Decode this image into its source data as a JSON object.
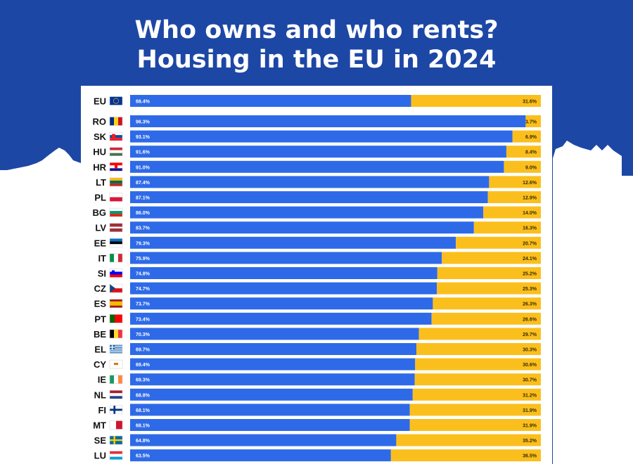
{
  "title_line1": "Who owns and who rents?",
  "title_line2": "Housing in the EU in 2024",
  "colors": {
    "background": "#1d47a5",
    "owner_bar": "#2e6ae8",
    "tenant_bar": "#fbbf1d"
  },
  "chart_data": {
    "type": "bar",
    "orientation": "horizontal",
    "stacked": true,
    "xlim": [
      0,
      100
    ],
    "categories": [
      "EU",
      "RO",
      "SK",
      "HU",
      "HR",
      "LT",
      "PL",
      "BG",
      "LV",
      "EE",
      "IT",
      "SI",
      "CZ",
      "ES",
      "PT",
      "BE",
      "EL",
      "CY",
      "IE",
      "NL",
      "FI",
      "MT",
      "SE",
      "LU"
    ],
    "series": [
      {
        "values": [
          68.4,
          96.3,
          93.1,
          91.6,
          91.0,
          87.4,
          87.1,
          86.0,
          83.7,
          79.3,
          75.9,
          74.8,
          74.7,
          73.7,
          73.4,
          70.3,
          69.7,
          69.4,
          69.3,
          68.8,
          68.1,
          68.1,
          64.8,
          63.5
        ],
        "labels": [
          "68.4%",
          "96.3%",
          "93.1%",
          "91.6%",
          "91.0%",
          "87.4%",
          "87.1%",
          "86.0%",
          "83.7%",
          "79.3%",
          "75.9%",
          "74.8%",
          "74.7%",
          "73.7%",
          "73.4%",
          "70.3%",
          "69.7%",
          "69.4%",
          "69.3%",
          "68.8%",
          "68.1%",
          "68.1%",
          "64.8%",
          "63.5%"
        ]
      },
      {
        "values": [
          31.6,
          3.7,
          6.9,
          8.4,
          9.0,
          12.6,
          12.9,
          14.0,
          16.3,
          20.7,
          24.1,
          25.2,
          25.3,
          26.3,
          26.6,
          29.7,
          30.3,
          30.6,
          30.7,
          31.2,
          31.9,
          31.9,
          35.2,
          36.5
        ],
        "labels": [
          "31.6%",
          "3.7%",
          "6.9%",
          "8.4%",
          "9.0%",
          "12.6%",
          "12.9%",
          "14.0%",
          "16.3%",
          "20.7%",
          "24.1%",
          "25.2%",
          "25.3%",
          "26.3%",
          "26.6%",
          "29.7%",
          "30.3%",
          "30.6%",
          "30.7%",
          "31.2%",
          "31.9%",
          "31.9%",
          "35.2%",
          "36.5%"
        ]
      }
    ],
    "flags": [
      "eu-flag-icon",
      "ro-flag-icon",
      "sk-flag-icon",
      "hu-flag-icon",
      "hr-flag-icon",
      "lt-flag-icon",
      "pl-flag-icon",
      "bg-flag-icon",
      "lv-flag-icon",
      "ee-flag-icon",
      "it-flag-icon",
      "si-flag-icon",
      "cz-flag-icon",
      "es-flag-icon",
      "pt-flag-icon",
      "be-flag-icon",
      "el-flag-icon",
      "cy-flag-icon",
      "ie-flag-icon",
      "nl-flag-icon",
      "fi-flag-icon",
      "mt-flag-icon",
      "se-flag-icon",
      "lu-flag-icon"
    ],
    "grid": true,
    "legend": "none"
  }
}
